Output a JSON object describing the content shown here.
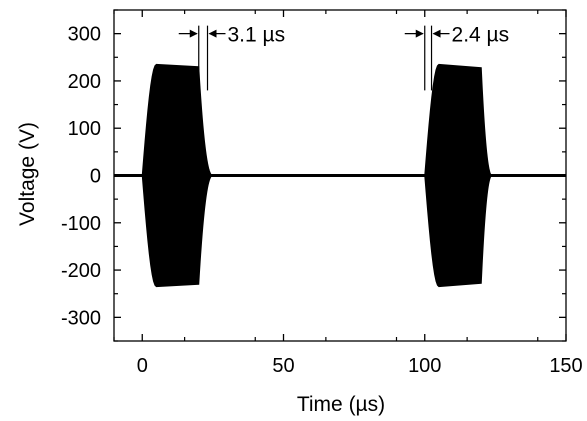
{
  "chart_data": {
    "type": "line",
    "xlabel": "Time (µs)",
    "ylabel": "Voltage (V)",
    "xlim": [
      -10,
      150
    ],
    "ylim": [
      -350,
      350
    ],
    "x_ticks": [
      0,
      50,
      100,
      150
    ],
    "x_tick_labels": [
      "0",
      "50",
      "100",
      "150"
    ],
    "y_ticks": [
      300,
      200,
      100,
      0,
      -100,
      -200,
      -300
    ],
    "y_tick_labels": [
      "300",
      "200",
      "100",
      "0",
      "-100",
      "-200",
      "-300"
    ],
    "grid": false,
    "legend": false,
    "series_color": "#000000",
    "series": [
      {
        "pulses": [
          {
            "start": 0,
            "plateau_start": 5,
            "end": 20,
            "peak_amplitude": 235,
            "end_amplitude": 230,
            "ringdown_time": 3.1
          },
          {
            "start": 100,
            "plateau_start": 105,
            "end": 120,
            "peak_amplitude": 235,
            "end_amplitude": 228,
            "ringdown_time": 2.4
          }
        ],
        "baseline": 0
      }
    ],
    "annotations": [
      {
        "label": "3.1 µs",
        "from_x": 20,
        "to_x": 23.1,
        "y": 300
      },
      {
        "label": "2.4 µs",
        "from_x": 100,
        "to_x": 102.4,
        "y": 300
      }
    ]
  }
}
